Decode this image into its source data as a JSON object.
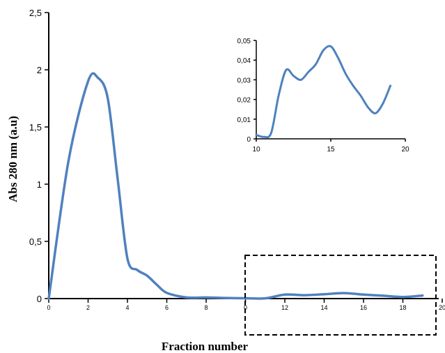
{
  "chart_data": [
    {
      "type": "line",
      "xlabel": "Fraction number",
      "ylabel": "Abs 280 nm (a.u)",
      "xlim": [
        0,
        20
      ],
      "ylim": [
        0,
        2.5
      ],
      "x_ticks": [
        "0",
        "2",
        "4",
        "6",
        "8",
        "0",
        "12",
        "14",
        "16",
        "18",
        "20"
      ],
      "y_ticks": [
        "0",
        "0,5",
        "1",
        "1,5",
        "2",
        "2,5"
      ],
      "grid": false,
      "legend": "none",
      "color": "#4F81BD",
      "series": [
        {
          "x": [
            0,
            1,
            2,
            2.5,
            3,
            3.5,
            4,
            4.5,
            5,
            5.5,
            6,
            7,
            8,
            9,
            10,
            11,
            12,
            13,
            14,
            15,
            16,
            17,
            18,
            19
          ],
          "values": [
            0.0,
            1.2,
            1.9,
            1.93,
            1.75,
            1.05,
            0.35,
            0.25,
            0.2,
            0.12,
            0.05,
            0.01,
            0.01,
            0.005,
            0.003,
            0.002,
            0.035,
            0.03,
            0.038,
            0.048,
            0.035,
            0.025,
            0.014,
            0.027
          ]
        }
      ],
      "annotations": [
        "dashed box highlighting fractions 10-20"
      ]
    },
    {
      "type": "line",
      "xlim": [
        10,
        20
      ],
      "ylim": [
        0,
        0.05
      ],
      "x_ticks": [
        "10",
        "15",
        "20"
      ],
      "y_ticks": [
        "0",
        "0,01",
        "0,02",
        "0,03",
        "0,04",
        "0,05"
      ],
      "grid": false,
      "legend": "none",
      "color": "#4F81BD",
      "series": [
        {
          "x": [
            10,
            10.5,
            11,
            11.5,
            12,
            12.5,
            13,
            13.5,
            14,
            14.5,
            15,
            15.5,
            16,
            16.5,
            17,
            17.5,
            18,
            18.5,
            19
          ],
          "values": [
            0.002,
            0.001,
            0.003,
            0.022,
            0.035,
            0.032,
            0.03,
            0.034,
            0.038,
            0.045,
            0.047,
            0.041,
            0.033,
            0.027,
            0.022,
            0.016,
            0.013,
            0.018,
            0.027
          ]
        }
      ]
    }
  ]
}
